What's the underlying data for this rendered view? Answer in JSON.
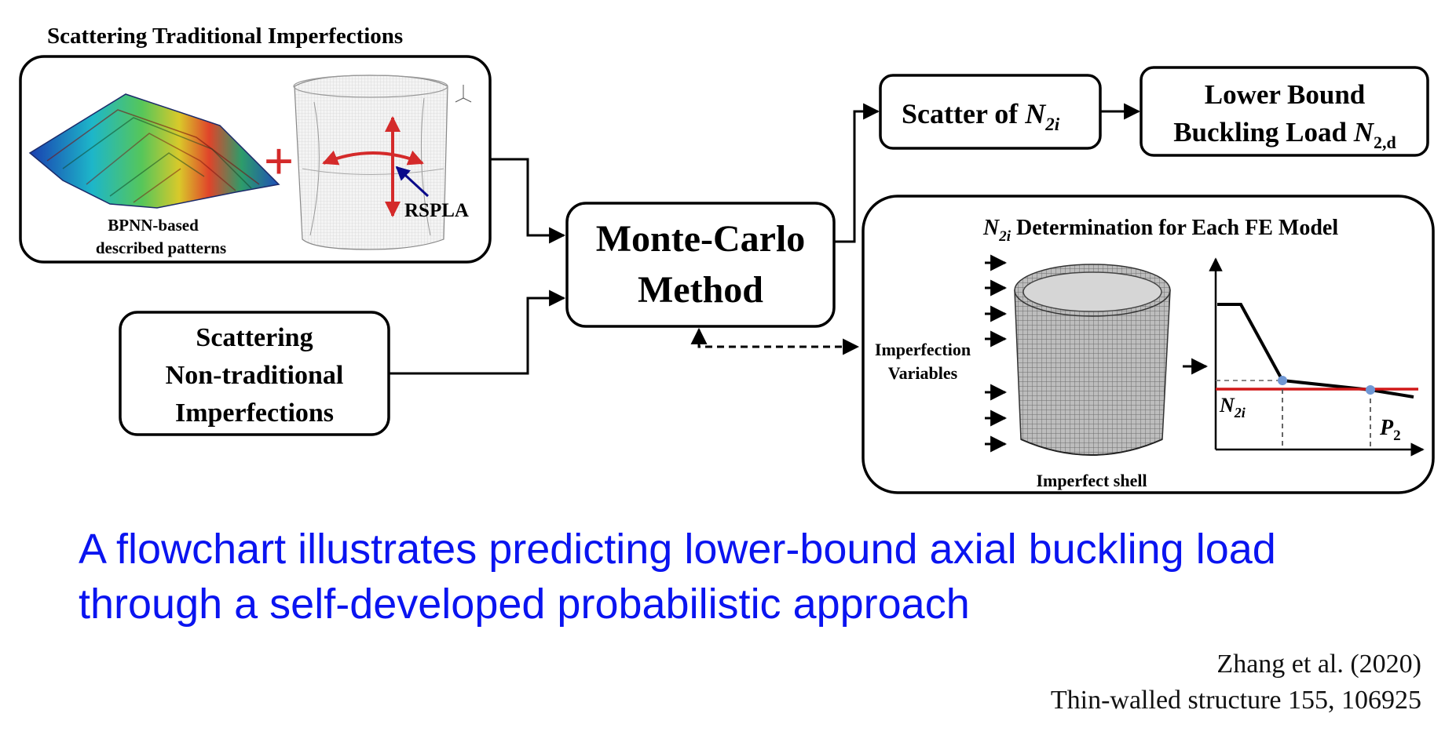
{
  "diagram": {
    "traditional_title": "Scattering Traditional Imperfections",
    "bpnn_line1": "BPNN-based",
    "bpnn_line2": "described patterns",
    "rspla": "RSPLA",
    "plus": "+",
    "nontrad_line1": "Scattering",
    "nontrad_line2": "Non-traditional",
    "nontrad_line3": "Imperfections",
    "monte_line1": "Monte-Carlo",
    "monte_line2": "Method",
    "scatter_text": "Scatter of ",
    "scatter_symbol": "N",
    "scatter_sub": "2i",
    "lower_line1": "Lower Bound",
    "lower_line2": "Buckling Load ",
    "lower_symbol": "N",
    "lower_sub": "2,d",
    "fe_symbol": "N",
    "fe_sub": "2i",
    "fe_title": " Determination for Each FE Model",
    "imp_var_line1": "Imperfection",
    "imp_var_line2": "Variables",
    "imperfect_shell": "Imperfect shell",
    "graph_n_symbol": "N",
    "graph_n_sub": "2i",
    "graph_p_symbol": "P",
    "graph_p_sub": "2"
  },
  "caption": {
    "line1": "A flowchart illustrates predicting lower-bound axial buckling load",
    "line2": "through a self-developed probabilistic approach"
  },
  "citation": {
    "line1": "Zhang et al. (2020)",
    "line2": "Thin-walled structure 155, 106925"
  },
  "colors": {
    "caption": "#0a14f0",
    "plus": "#d42a2a",
    "red_line": "#d01818",
    "rspla_arrow": "#0a0a8a",
    "point": "#6f97d4"
  }
}
